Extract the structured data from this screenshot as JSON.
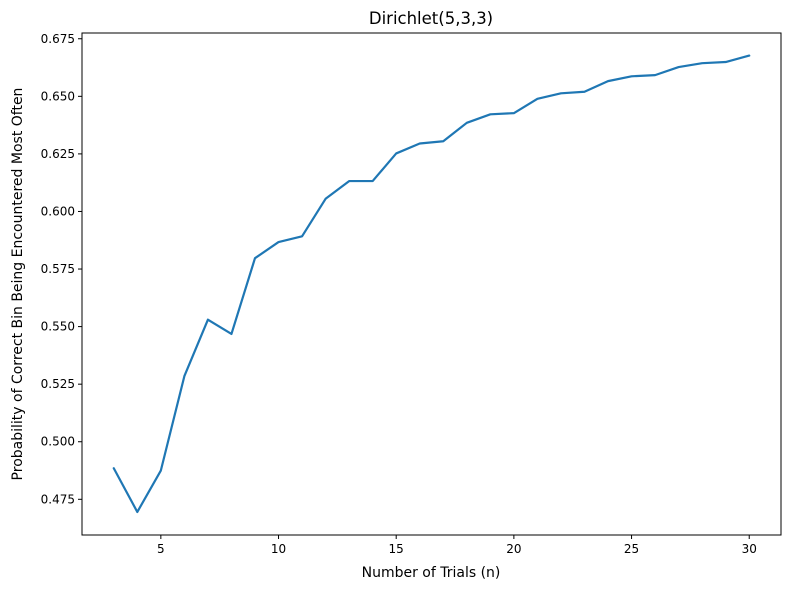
{
  "chart_data": {
    "type": "line",
    "title": "Dirichlet(5,3,3)",
    "xlabel": "Number of Trials (n)",
    "ylabel": "Probability of Correct Bin Being Encountered Most Often",
    "xlim": [
      1.65,
      31.35
    ],
    "ylim": [
      0.4595,
      0.6775
    ],
    "xticks": [
      5,
      10,
      15,
      20,
      25,
      30
    ],
    "yticks": [
      0.475,
      0.5,
      0.525,
      0.55,
      0.575,
      0.6,
      0.625,
      0.65,
      0.675
    ],
    "xtick_labels": [
      "5",
      "10",
      "15",
      "20",
      "25",
      "30"
    ],
    "ytick_labels": [
      "0.475",
      "0.500",
      "0.525",
      "0.550",
      "0.575",
      "0.600",
      "0.625",
      "0.650",
      "0.675"
    ],
    "grid": false,
    "line_color": "#1f77b4",
    "series": [
      {
        "x": [
          3,
          4,
          5,
          6,
          7,
          8,
          9,
          10,
          11,
          12,
          13,
          14,
          15,
          16,
          17,
          18,
          19,
          20,
          21,
          22,
          23,
          24,
          25,
          26,
          27,
          28,
          29,
          30
        ],
        "values": [
          0.4885,
          0.4695,
          0.4875,
          0.5285,
          0.553,
          0.5468,
          0.5797,
          0.5867,
          0.5892,
          0.6055,
          0.6132,
          0.6132,
          0.6252,
          0.6295,
          0.6305,
          0.6385,
          0.6422,
          0.6427,
          0.6489,
          0.6513,
          0.652,
          0.6566,
          0.6587,
          0.6592,
          0.6627,
          0.6644,
          0.6649,
          0.6677
        ]
      }
    ]
  }
}
